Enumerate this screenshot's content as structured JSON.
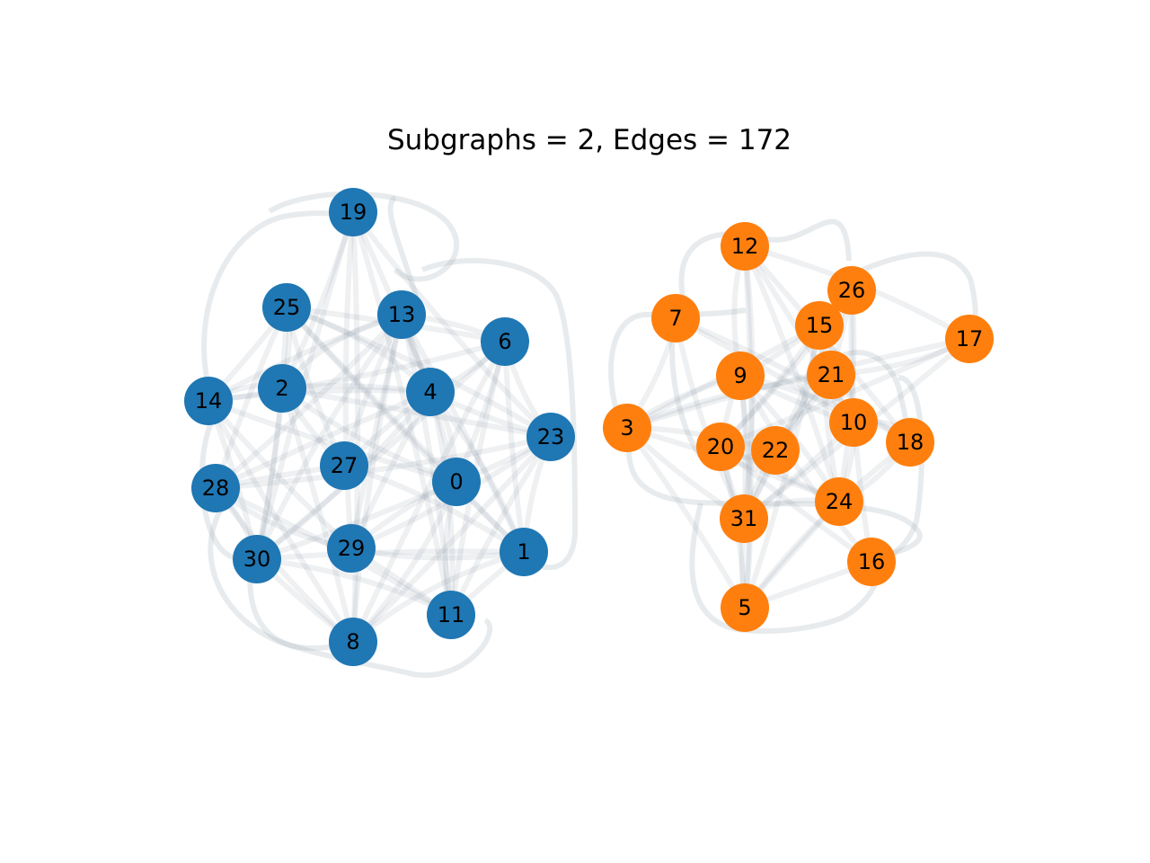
{
  "title": "Subgraphs = 2, Edges = 172",
  "colors": {
    "group_a": "#1f77b4",
    "group_b": "#ff7f0e",
    "edge": "#8a9aa6"
  },
  "groups": [
    {
      "name": "a",
      "nodes": [
        "19",
        "25",
        "13",
        "6",
        "14",
        "2",
        "4",
        "23",
        "27",
        "0",
        "28",
        "29",
        "1",
        "30",
        "11",
        "8"
      ]
    },
    {
      "name": "b",
      "nodes": [
        "12",
        "26",
        "7",
        "15",
        "17",
        "9",
        "21",
        "3",
        "10",
        "18",
        "20",
        "22",
        "24",
        "31",
        "16",
        "5"
      ]
    }
  ]
}
